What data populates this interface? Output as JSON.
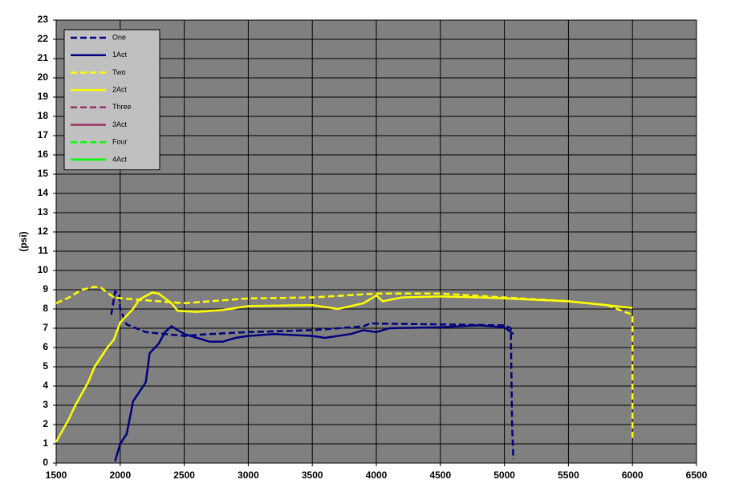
{
  "chart_data": {
    "type": "line",
    "ylabel": "(psi)",
    "xlim": [
      1500,
      6500
    ],
    "xticks": [
      1500,
      2000,
      2500,
      3000,
      3500,
      4000,
      4500,
      5000,
      5500,
      6000,
      6500
    ],
    "ylim": [
      0,
      23
    ],
    "yticks": [
      0,
      1,
      2,
      3,
      4,
      5,
      6,
      7,
      8,
      9,
      10,
      11,
      12,
      13,
      14,
      15,
      16,
      17,
      18,
      19,
      20,
      21,
      22,
      23
    ],
    "grid": true,
    "legend": "upper left",
    "series": [
      {
        "name": "One",
        "color": "#000080",
        "style": "dashed",
        "x": [
          1930,
          1960,
          1990,
          2000,
          2050,
          2200,
          2500,
          2700,
          3000,
          3500,
          3900,
          3950,
          4500,
          5000,
          5050,
          5060,
          5070
        ],
        "values": [
          7.7,
          8.9,
          8.8,
          8.0,
          7.2,
          6.8,
          6.6,
          6.7,
          6.8,
          6.9,
          7.1,
          7.25,
          7.2,
          7.15,
          7.0,
          2.0,
          0.2
        ]
      },
      {
        "name": "1Act",
        "color": "#000080",
        "style": "solid",
        "x": [
          1960,
          2000,
          2050,
          2080,
          2100,
          2200,
          2230,
          2300,
          2350,
          2400,
          2500,
          2600,
          2700,
          2800,
          2900,
          3000,
          3200,
          3500,
          3600,
          3800,
          3900,
          4000,
          4100,
          4500,
          4800,
          5000,
          5070
        ],
        "values": [
          0.1,
          1.0,
          1.5,
          2.5,
          3.2,
          4.2,
          5.7,
          6.2,
          6.8,
          7.1,
          6.7,
          6.5,
          6.3,
          6.3,
          6.5,
          6.6,
          6.7,
          6.6,
          6.5,
          6.7,
          6.9,
          6.8,
          7.0,
          7.05,
          7.15,
          7.05,
          6.7
        ]
      },
      {
        "name": "Two",
        "color": "#ffff00",
        "style": "dashed",
        "x": [
          1500,
          1600,
          1700,
          1800,
          1850,
          1950,
          2100,
          2300,
          2500,
          2700,
          3000,
          3500,
          4000,
          4500,
          5000,
          5500,
          5800,
          6000,
          6000
        ],
        "values": [
          8.3,
          8.6,
          9.0,
          9.15,
          9.1,
          8.6,
          8.5,
          8.4,
          8.3,
          8.4,
          8.55,
          8.6,
          8.8,
          8.8,
          8.6,
          8.4,
          8.2,
          7.7,
          1.3
        ]
      },
      {
        "name": "2Act",
        "color": "#ffff00",
        "style": "solid",
        "x": [
          1500,
          1550,
          1600,
          1650,
          1700,
          1750,
          1800,
          1850,
          1900,
          1950,
          2000,
          2100,
          2150,
          2250,
          2300,
          2400,
          2450,
          2600,
          2800,
          3000,
          3500,
          3700,
          3900,
          4000,
          4050,
          4200,
          4500,
          4800,
          5000,
          5500,
          5800,
          6000
        ],
        "values": [
          1.1,
          1.7,
          2.3,
          3.0,
          3.6,
          4.2,
          5.0,
          5.5,
          6.0,
          6.4,
          7.3,
          8.0,
          8.5,
          8.85,
          8.8,
          8.3,
          7.9,
          7.85,
          7.95,
          8.15,
          8.2,
          8.0,
          8.3,
          8.7,
          8.4,
          8.6,
          8.65,
          8.6,
          8.55,
          8.4,
          8.2,
          8.05
        ]
      },
      {
        "name": "Three",
        "color": "#993366",
        "style": "dashed",
        "x": [],
        "values": []
      },
      {
        "name": "3Act",
        "color": "#993366",
        "style": "solid",
        "x": [],
        "values": []
      },
      {
        "name": "Four",
        "color": "#00ff00",
        "style": "dashed",
        "x": [],
        "values": []
      },
      {
        "name": "4Act",
        "color": "#00ff00",
        "style": "solid",
        "x": [],
        "values": []
      }
    ]
  }
}
